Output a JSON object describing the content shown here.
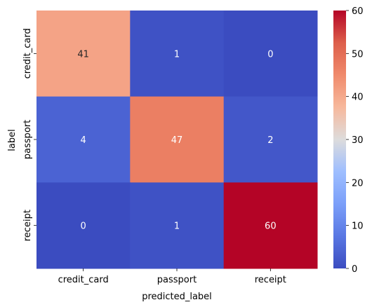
{
  "chart_data": {
    "type": "heatmap",
    "xlabel": "predicted_label",
    "ylabel": "label",
    "x_categories": [
      "credit_card",
      "passport",
      "receipt"
    ],
    "y_categories": [
      "credit_card",
      "passport",
      "receipt"
    ],
    "values": [
      [
        41,
        1,
        0
      ],
      [
        4,
        47,
        2
      ],
      [
        0,
        1,
        60
      ]
    ],
    "colormap": "coolwarm",
    "colorbar": {
      "range": [
        0,
        60
      ],
      "ticks": [
        0,
        10,
        20,
        30,
        40,
        50,
        60
      ]
    },
    "annotations": true
  }
}
